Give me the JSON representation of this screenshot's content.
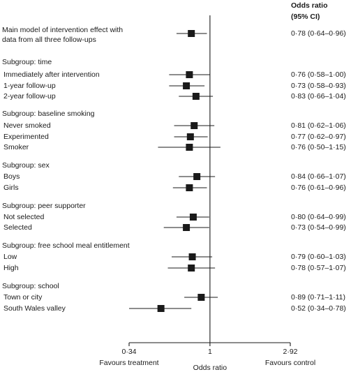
{
  "header": {
    "line1": "Odds ratio",
    "line2": "(95% CI)"
  },
  "chart_data": {
    "type": "forest",
    "xlabel": "Odds ratio",
    "x_scale": "log",
    "xlim": [
      0.34,
      2.92
    ],
    "reference_value": 1,
    "ticks": [
      "0·34",
      "1",
      "2·92"
    ],
    "tick_values": [
      0.34,
      1,
      2.92
    ],
    "left_direction_label": "Favours treatment",
    "right_direction_label": "Favours control",
    "rows": [
      {
        "kind": "row",
        "label": "Main model of intervention effect with",
        "label_line2": "data from all three follow-ups",
        "or": 0.78,
        "lo": 0.64,
        "hi": 0.96,
        "ci_text": "0·78 (0·64–0·96)"
      },
      {
        "kind": "group",
        "label": "Subgroup: time"
      },
      {
        "kind": "row",
        "label": "Immediately after intervention",
        "or": 0.76,
        "lo": 0.58,
        "hi": 1.0,
        "ci_text": "0·76 (0·58–1·00)"
      },
      {
        "kind": "row",
        "label": "1-year follow-up",
        "or": 0.73,
        "lo": 0.58,
        "hi": 0.93,
        "ci_text": "0·73 (0·58–0·93)"
      },
      {
        "kind": "row",
        "label": "2-year follow-up",
        "or": 0.83,
        "lo": 0.66,
        "hi": 1.04,
        "ci_text": "0·83 (0·66–1·04)"
      },
      {
        "kind": "group",
        "label": "Subgroup: baseline smoking"
      },
      {
        "kind": "row",
        "label": "Never smoked",
        "or": 0.81,
        "lo": 0.62,
        "hi": 1.06,
        "ci_text": "0·81 (0·62–1·06)"
      },
      {
        "kind": "row",
        "label": "Experimented",
        "or": 0.77,
        "lo": 0.62,
        "hi": 0.97,
        "ci_text": "0·77 (0·62–0·97)"
      },
      {
        "kind": "row",
        "label": "Smoker",
        "or": 0.76,
        "lo": 0.5,
        "hi": 1.15,
        "ci_text": "0·76 (0·50–1·15)"
      },
      {
        "kind": "group",
        "label": "Subgroup: sex"
      },
      {
        "kind": "row",
        "label": "Boys",
        "or": 0.84,
        "lo": 0.66,
        "hi": 1.07,
        "ci_text": "0·84 (0·66–1·07)"
      },
      {
        "kind": "row",
        "label": "Girls",
        "or": 0.76,
        "lo": 0.61,
        "hi": 0.96,
        "ci_text": "0·76 (0·61–0·96)"
      },
      {
        "kind": "group",
        "label": "Subgroup: peer supporter"
      },
      {
        "kind": "row",
        "label": "Not selected",
        "or": 0.8,
        "lo": 0.64,
        "hi": 0.99,
        "ci_text": "0·80 (0·64–0·99)"
      },
      {
        "kind": "row",
        "label": "Selected",
        "or": 0.73,
        "lo": 0.54,
        "hi": 0.99,
        "ci_text": "0·73 (0·54–0·99)"
      },
      {
        "kind": "group",
        "label": "Subgroup: free school meal entitlement"
      },
      {
        "kind": "row",
        "label": "Low",
        "or": 0.79,
        "lo": 0.6,
        "hi": 1.03,
        "ci_text": "0·79 (0·60–1·03)"
      },
      {
        "kind": "row",
        "label": "High",
        "or": 0.78,
        "lo": 0.57,
        "hi": 1.07,
        "ci_text": "0·78 (0·57–1·07)"
      },
      {
        "kind": "group",
        "label": "Subgroup: school"
      },
      {
        "kind": "row",
        "label": "Town or city",
        "or": 0.89,
        "lo": 0.71,
        "hi": 1.11,
        "ci_text": "0·89 (0·71–1·11)"
      },
      {
        "kind": "row",
        "label": "South Wales valley",
        "or": 0.52,
        "lo": 0.34,
        "hi": 0.78,
        "ci_text": "0·52 (0·34–0·78)"
      }
    ]
  }
}
